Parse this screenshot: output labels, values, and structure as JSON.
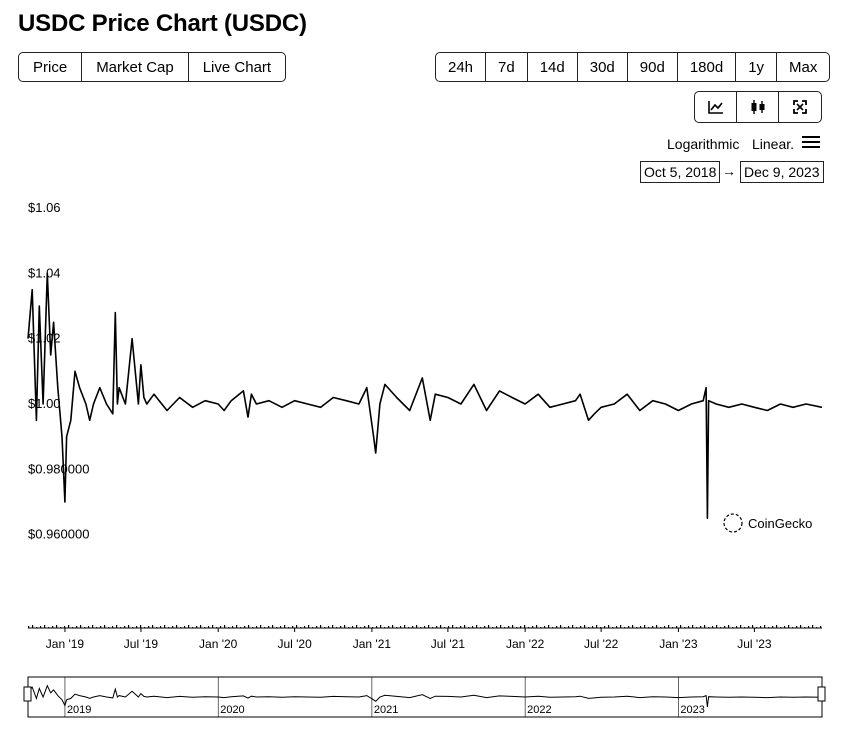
{
  "page": {
    "title": "USDC Price Chart (USDC)"
  },
  "tabs": [
    "Price",
    "Market Cap",
    "Live Chart"
  ],
  "ranges": [
    "24h",
    "7d",
    "14d",
    "30d",
    "90d",
    "180d",
    "1y",
    "Max"
  ],
  "view_icons": [
    "line-chart-icon",
    "candlestick-icon",
    "fullscreen-icon"
  ],
  "scale": {
    "log_label": "Logarithmic",
    "linear_label": "Linear."
  },
  "date_range": {
    "from": "Oct 5, 2018",
    "arrow": "→",
    "to": "Dec 9, 2023"
  },
  "watermark": "CoinGecko",
  "chart_data": {
    "type": "line",
    "title": "",
    "ylim": [
      0.94,
      1.06
    ],
    "y_ticks": [
      {
        "value": 1.06,
        "label": "$1.06"
      },
      {
        "value": 1.04,
        "label": "$1.04"
      },
      {
        "value": 1.02,
        "label": "$1.02"
      },
      {
        "value": 1.0,
        "label": "$1.00"
      },
      {
        "value": 0.98,
        "label": "$0.980000"
      },
      {
        "value": 0.96,
        "label": "$0.960000"
      }
    ],
    "x_ticks": [
      "Jan '19",
      "Jul '19",
      "Jan '20",
      "Jul '20",
      "Jan '21",
      "Jul '21",
      "Jan '22",
      "Jul '22",
      "Jan '23",
      "Jul '23"
    ],
    "navigator_ticks": [
      "2019",
      "2020",
      "2021",
      "2022",
      "2023"
    ],
    "x_range": [
      "2018-10-05",
      "2023-12-09"
    ],
    "series": [
      {
        "x": [
          "2018-10-05",
          "2018-10-15",
          "2018-10-25",
          "2018-11-01",
          "2018-11-10",
          "2018-11-20",
          "2018-11-28",
          "2018-12-05",
          "2018-12-15",
          "2018-12-25",
          "2019-01-01",
          "2019-01-05",
          "2019-01-15",
          "2019-01-25",
          "2019-02-05",
          "2019-02-20",
          "2019-03-01",
          "2019-03-10",
          "2019-03-25",
          "2019-04-10",
          "2019-04-25",
          "2019-05-01",
          "2019-05-06",
          "2019-05-10",
          "2019-05-25",
          "2019-06-10",
          "2019-06-25",
          "2019-07-01",
          "2019-07-08",
          "2019-07-15",
          "2019-08-01",
          "2019-09-01",
          "2019-10-01",
          "2019-11-01",
          "2019-12-01",
          "2020-01-01",
          "2020-01-15",
          "2020-02-01",
          "2020-03-01",
          "2020-03-12",
          "2020-03-20",
          "2020-04-01",
          "2020-05-01",
          "2020-06-01",
          "2020-07-01",
          "2020-08-01",
          "2020-09-01",
          "2020-10-01",
          "2020-11-01",
          "2020-12-01",
          "2020-12-20",
          "2021-01-05",
          "2021-01-10",
          "2021-01-20",
          "2021-02-01",
          "2021-03-01",
          "2021-04-01",
          "2021-05-01",
          "2021-05-20",
          "2021-06-01",
          "2021-07-01",
          "2021-08-01",
          "2021-09-01",
          "2021-10-01",
          "2021-11-01",
          "2021-12-01",
          "2022-01-01",
          "2022-02-01",
          "2022-03-01",
          "2022-04-01",
          "2022-05-01",
          "2022-05-12",
          "2022-06-01",
          "2022-06-15",
          "2022-07-01",
          "2022-08-01",
          "2022-09-01",
          "2022-10-01",
          "2022-11-01",
          "2022-12-01",
          "2023-01-01",
          "2023-02-01",
          "2023-03-01",
          "2023-03-08",
          "2023-03-11",
          "2023-03-14",
          "2023-04-01",
          "2023-05-01",
          "2023-06-01",
          "2023-07-01",
          "2023-08-01",
          "2023-09-01",
          "2023-10-01",
          "2023-11-01",
          "2023-12-09"
        ],
        "values": [
          1.02,
          1.035,
          0.995,
          1.03,
          1.0,
          1.04,
          1.015,
          1.025,
          1.005,
          0.99,
          0.97,
          0.99,
          0.995,
          1.01,
          1.005,
          1.0,
          0.995,
          1.0,
          1.005,
          1.0,
          0.997,
          1.028,
          1.0,
          1.005,
          1.0,
          1.02,
          1.0,
          1.012,
          1.002,
          1.0,
          1.003,
          0.998,
          1.002,
          0.999,
          1.001,
          1.0,
          0.998,
          1.001,
          1.004,
          0.996,
          1.003,
          1.0,
          1.001,
          0.999,
          1.001,
          1.0,
          0.999,
          1.002,
          1.001,
          1.0,
          1.005,
          0.99,
          0.985,
          1.0,
          1.006,
          1.002,
          0.998,
          1.008,
          0.995,
          1.003,
          1.002,
          1.0,
          1.006,
          0.998,
          1.004,
          1.002,
          1.0,
          1.003,
          0.999,
          1.0,
          1.001,
          1.003,
          0.995,
          0.997,
          0.999,
          1.0,
          1.003,
          0.998,
          1.001,
          1.0,
          0.998,
          1.0,
          1.001,
          1.005,
          0.965,
          1.001,
          1.0,
          0.999,
          1.0,
          0.999,
          0.998,
          1.0,
          0.999,
          1.0,
          0.999
        ]
      }
    ]
  }
}
